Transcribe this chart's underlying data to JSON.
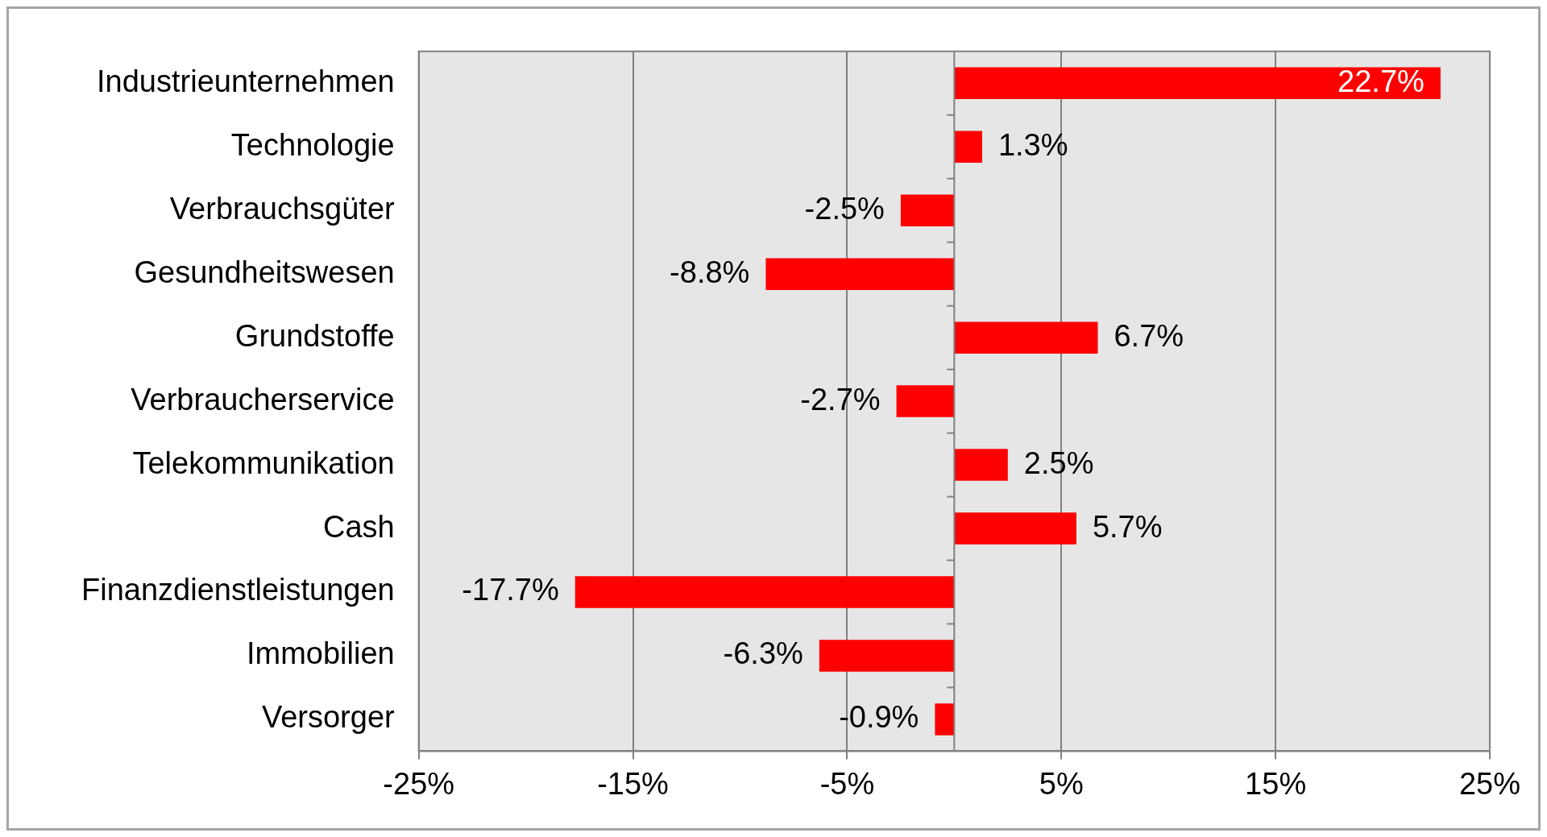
{
  "chart_data": {
    "type": "bar",
    "orientation": "horizontal",
    "categories": [
      "Industrieunternehmen",
      "Technologie",
      "Verbrauchsgüter",
      "Gesundheitswesen",
      "Grundstoffe",
      "Verbraucherservice",
      "Telekommunikation",
      "Cash",
      "Finanzdienstleistungen",
      "Immobilien",
      "Versorger"
    ],
    "values": [
      22.7,
      1.3,
      -2.5,
      -8.8,
      6.7,
      -2.7,
      2.5,
      5.7,
      -17.7,
      -6.3,
      -0.9
    ],
    "value_labels": [
      "22.7%",
      "1.3%",
      "-2.5%",
      "-8.8%",
      "6.7%",
      "-2.7%",
      "2.5%",
      "5.7%",
      "-17.7%",
      "-6.3%",
      "-0.9%"
    ],
    "color": "#ff0000",
    "xlim": [
      -25,
      25
    ],
    "xticks": [
      {
        "value": -25,
        "label": "-25%"
      },
      {
        "value": -15,
        "label": "-15%"
      },
      {
        "value": -5,
        "label": "-5%"
      },
      {
        "value": 5,
        "label": "5%"
      },
      {
        "value": 15,
        "label": "15%"
      },
      {
        "value": 25,
        "label": "25%"
      }
    ],
    "grid": "x",
    "legend": false
  }
}
